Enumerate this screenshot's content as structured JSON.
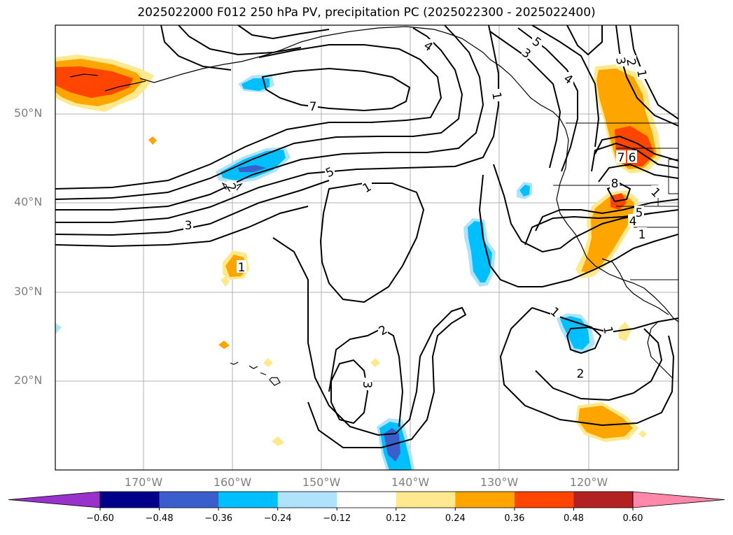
{
  "title": "2025022000 F012 250 hPa PV, precipitation PC (2025022300 - 2025022400)",
  "latitudes": [
    "50°N",
    "40°N",
    "30°N",
    "20°N"
  ],
  "longitudes": [
    "170°W",
    "160°W",
    "150°W",
    "140°W",
    "130°W",
    "120°W"
  ],
  "contour_labels": [
    "7",
    "5",
    "3",
    "1",
    "1",
    "2",
    "3",
    "4",
    "3",
    "5",
    "4",
    "1",
    "3",
    "2",
    "1",
    "7",
    "6",
    "8",
    "5",
    "4",
    "1",
    "1",
    "1",
    "2",
    "1",
    "2"
  ],
  "colorbar": {
    "ticks": [
      "−0.60",
      "−0.48",
      "−0.36",
      "−0.24",
      "−0.12",
      "0.12",
      "0.24",
      "0.36",
      "0.48",
      "0.60"
    ],
    "colors": [
      "#9932cc",
      "#00008b",
      "#3a5fcd",
      "#00bfff",
      "#afe3fc",
      "#ffffff",
      "#ffe98c",
      "#ffa500",
      "#ff4500",
      "#b22222",
      "#ff88aa"
    ],
    "under_color": "#9932cc",
    "over_color": "#ff88aa"
  }
}
